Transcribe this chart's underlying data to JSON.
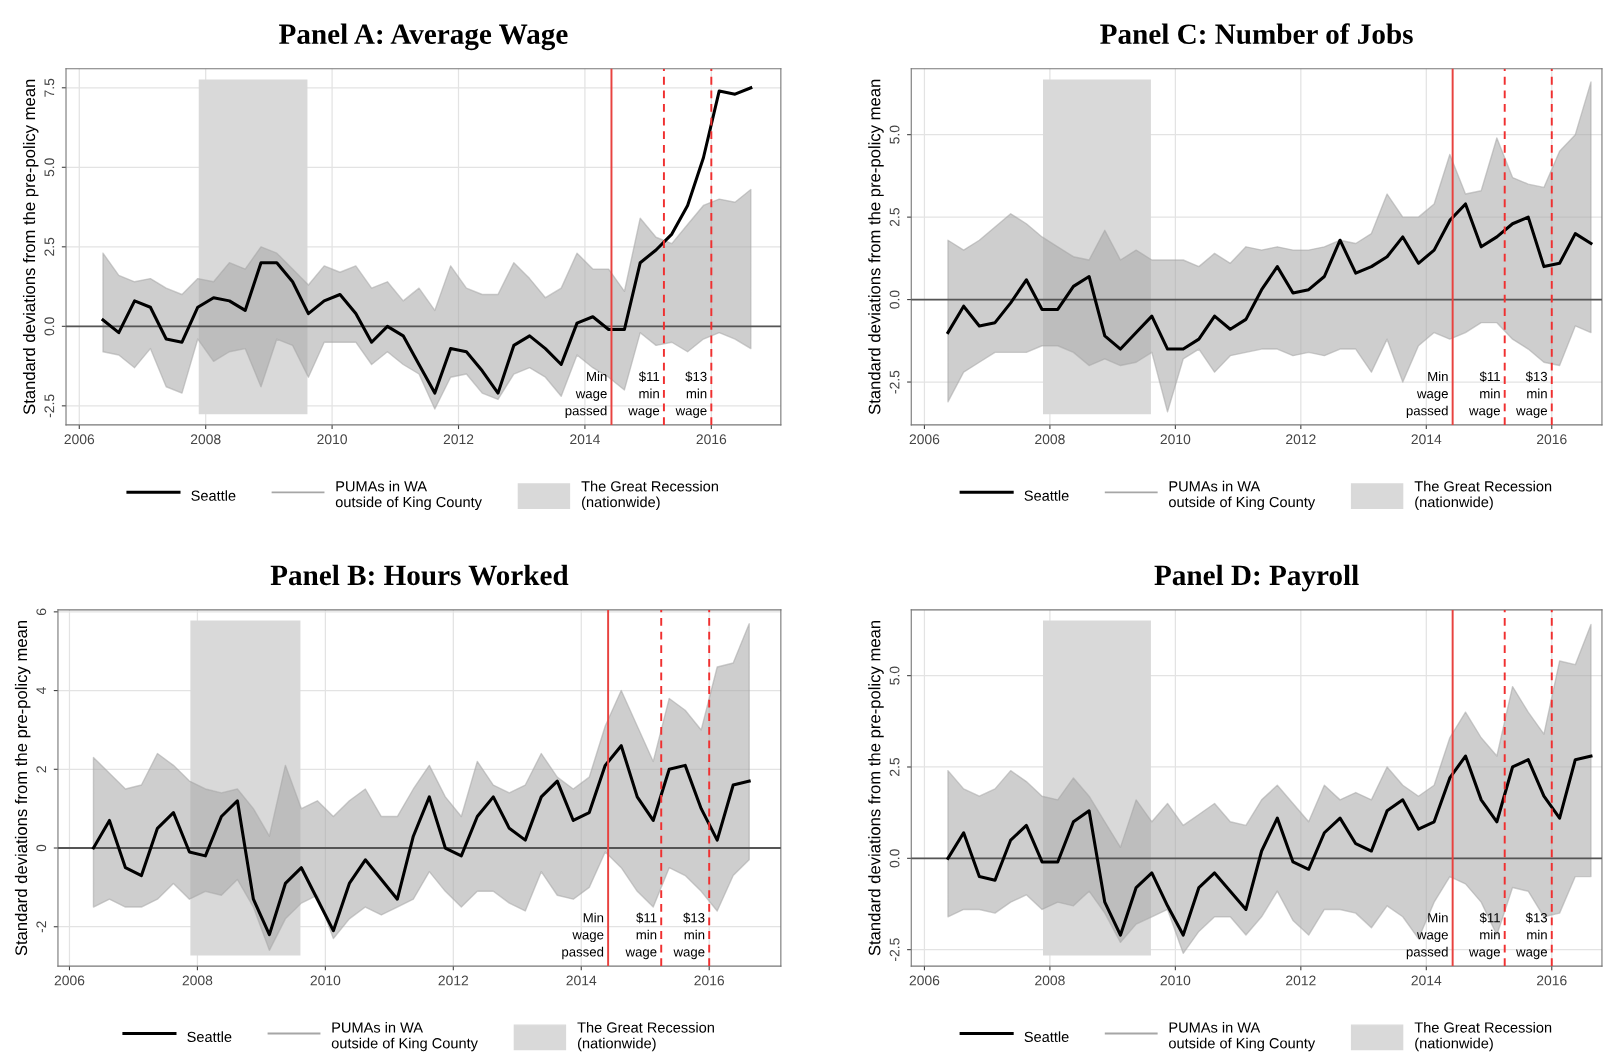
{
  "chart_data": [
    {
      "type": "line",
      "title": "Panel A: Average Wage",
      "ylabel": "Standard deviations from the pre-policy mean",
      "grid": true,
      "legend": "bottom",
      "line_style": "solid",
      "marker": "none",
      "x": [
        2006.375,
        2006.625,
        2006.875,
        2007.125,
        2007.375,
        2007.625,
        2007.875,
        2008.125,
        2008.375,
        2008.625,
        2008.875,
        2009.125,
        2009.375,
        2009.625,
        2009.875,
        2010.125,
        2010.375,
        2010.625,
        2010.875,
        2011.125,
        2011.375,
        2011.625,
        2011.875,
        2012.125,
        2012.375,
        2012.625,
        2012.875,
        2013.125,
        2013.375,
        2013.625,
        2013.875,
        2014.125,
        2014.375,
        2014.625,
        2014.875,
        2015.125,
        2015.375,
        2015.625,
        2015.875,
        2016.125,
        2016.375,
        2016.625
      ],
      "xlim": [
        2005.79,
        2017.1
      ],
      "xticks": [
        2006,
        2008,
        2010,
        2012,
        2014,
        2016
      ],
      "ylim": [
        -3.1,
        8.1
      ],
      "yticks": [
        {
          "value": -2.5,
          "label": "-2.5"
        },
        {
          "value": 0,
          "label": "0.0"
        },
        {
          "value": 2.5,
          "label": "2.5"
        },
        {
          "value": 5,
          "label": "5.0"
        },
        {
          "value": 7.5,
          "label": "7.5"
        }
      ],
      "series": [
        {
          "name": "PUMAs in WA\noutside of King County",
          "color": "#a6a6a6",
          "values": [
            null,
            null,
            null,
            null,
            null,
            null,
            null,
            null,
            null,
            null,
            null,
            null,
            null,
            null,
            null,
            null,
            null,
            null,
            null,
            null,
            null,
            null,
            null,
            null,
            null,
            null,
            null,
            null,
            null,
            null,
            null,
            null,
            null,
            null,
            null,
            null,
            null,
            null,
            null,
            null,
            null,
            null
          ],
          "upper": [
            2.3,
            1.6,
            1.4,
            1.5,
            1.2,
            1.0,
            1.5,
            1.4,
            2.0,
            1.8,
            2.5,
            2.3,
            1.8,
            1.3,
            1.9,
            1.7,
            1.9,
            1.2,
            1.4,
            0.8,
            1.2,
            0.5,
            1.9,
            1.2,
            1.0,
            1.0,
            2.0,
            1.5,
            0.9,
            1.2,
            2.3,
            1.8,
            1.8,
            1.1,
            3.4,
            2.8,
            2.6,
            3.2,
            3.8,
            4.0,
            3.9,
            4.3
          ],
          "lower": [
            -0.8,
            -0.9,
            -1.3,
            -0.7,
            -1.9,
            -2.1,
            -0.4,
            -1.1,
            -0.8,
            -0.7,
            -1.9,
            -0.4,
            -0.6,
            -1.6,
            -0.5,
            -0.5,
            -0.5,
            -1.2,
            -0.8,
            -1.2,
            -1.5,
            -2.6,
            -1.6,
            -1.5,
            -2.1,
            -2.3,
            -1.5,
            -1.3,
            -1.6,
            -2.2,
            -0.9,
            -1.3,
            -1.6,
            -2.0,
            -0.2,
            -0.6,
            -0.5,
            -0.8,
            -0.4,
            -0.2,
            -0.4,
            -0.7
          ]
        },
        {
          "name": "Seattle",
          "color": "#000000",
          "values": [
            0.2,
            -0.2,
            0.8,
            0.6,
            -0.4,
            -0.5,
            0.6,
            0.9,
            0.8,
            0.5,
            2.0,
            2.0,
            1.4,
            0.4,
            0.8,
            1.0,
            0.4,
            -0.5,
            0.0,
            -0.3,
            -1.2,
            -2.1,
            -0.7,
            -0.8,
            -1.4,
            -2.1,
            -0.6,
            -0.3,
            -0.7,
            -1.2,
            0.1,
            0.3,
            -0.1,
            -0.1,
            2.0,
            2.4,
            2.9,
            3.8,
            5.3,
            7.4,
            7.3,
            7.5
          ]
        }
      ],
      "ref_lines": [
        {
          "axis": "y",
          "value": 0,
          "color": "#555555",
          "line_style": "solid"
        },
        {
          "axis": "x",
          "value": 2014.42,
          "label": "Min\nwage\npassed",
          "color": "#e8423f",
          "line_style": "solid"
        },
        {
          "axis": "x",
          "value": 2015.25,
          "label": "$11\nmin\nwage",
          "color": "#f03030",
          "line_style": "dashed"
        },
        {
          "axis": "x",
          "value": 2016.0,
          "label": "$13\nmin\nwage",
          "color": "#f03030",
          "line_style": "dashed"
        }
      ],
      "bands": [
        {
          "axis": "x",
          "from": 2007.89,
          "to": 2009.61,
          "label": "The Great Recession\n(nationwide)",
          "color": "#d9d9d9"
        }
      ]
    },
    {
      "type": "line",
      "title": "Panel C: Number of Jobs",
      "ylabel": "Standard deviations from the pre-policy mean",
      "grid": true,
      "legend": "bottom",
      "line_style": "solid",
      "marker": "none",
      "x": [
        2006.375,
        2006.625,
        2006.875,
        2007.125,
        2007.375,
        2007.625,
        2007.875,
        2008.125,
        2008.375,
        2008.625,
        2008.875,
        2009.125,
        2009.375,
        2009.625,
        2009.875,
        2010.125,
        2010.375,
        2010.625,
        2010.875,
        2011.125,
        2011.375,
        2011.625,
        2011.875,
        2012.125,
        2012.375,
        2012.625,
        2012.875,
        2013.125,
        2013.375,
        2013.625,
        2013.875,
        2014.125,
        2014.375,
        2014.625,
        2014.875,
        2015.125,
        2015.375,
        2015.625,
        2015.875,
        2016.125,
        2016.375,
        2016.625
      ],
      "xlim": [
        2005.79,
        2016.8
      ],
      "xticks": [
        2006,
        2008,
        2010,
        2012,
        2014,
        2016
      ],
      "ylim": [
        -3.8,
        7.0
      ],
      "yticks": [
        {
          "value": -2.5,
          "label": "-2.5"
        },
        {
          "value": 0,
          "label": "0.0"
        },
        {
          "value": 2.5,
          "label": "2.5"
        },
        {
          "value": 5,
          "label": "5.0"
        }
      ],
      "series": [
        {
          "name": "PUMAs in WA\noutside of King County",
          "color": "#a6a6a6",
          "values": [
            null,
            null,
            null,
            null,
            null,
            null,
            null,
            null,
            null,
            null,
            null,
            null,
            null,
            null,
            null,
            null,
            null,
            null,
            null,
            null,
            null,
            null,
            null,
            null,
            null,
            null,
            null,
            null,
            null,
            null,
            null,
            null,
            null,
            null,
            null,
            null,
            null,
            null,
            null,
            null,
            null,
            null
          ],
          "upper": [
            1.8,
            1.5,
            1.8,
            2.2,
            2.6,
            2.3,
            1.9,
            1.6,
            1.3,
            1.2,
            2.1,
            1.2,
            1.5,
            1.2,
            1.2,
            1.2,
            1.0,
            1.4,
            1.1,
            1.6,
            1.5,
            1.6,
            1.5,
            1.5,
            1.6,
            1.8,
            1.7,
            2.0,
            3.2,
            2.5,
            2.5,
            2.9,
            4.4,
            3.2,
            3.3,
            4.9,
            3.7,
            3.5,
            3.4,
            4.5,
            5.0,
            6.6
          ],
          "lower": [
            -3.1,
            -2.2,
            -1.9,
            -1.6,
            -1.6,
            -1.6,
            -1.4,
            -1.4,
            -1.6,
            -2.0,
            -1.8,
            -2.0,
            -1.9,
            -1.6,
            -3.4,
            -1.8,
            -1.5,
            -2.2,
            -1.7,
            -1.6,
            -1.5,
            -1.5,
            -1.7,
            -1.6,
            -1.7,
            -1.5,
            -1.5,
            -2.2,
            -1.2,
            -2.5,
            -1.4,
            -1.0,
            -1.2,
            -1.0,
            -0.7,
            -0.7,
            -1.2,
            -1.5,
            -1.9,
            -2.0,
            -0.8,
            -1.0
          ]
        },
        {
          "name": "Seattle",
          "color": "#000000",
          "values": [
            -1.0,
            -0.2,
            -0.8,
            -0.7,
            -0.1,
            0.6,
            -0.3,
            -0.3,
            0.4,
            0.7,
            -1.1,
            -1.5,
            -1.0,
            -0.5,
            -1.5,
            -1.5,
            -1.2,
            -0.5,
            -0.9,
            -0.6,
            0.3,
            1.0,
            0.2,
            0.3,
            0.7,
            1.8,
            0.8,
            1.0,
            1.3,
            1.9,
            1.1,
            1.5,
            2.4,
            2.9,
            1.6,
            1.9,
            2.3,
            2.5,
            1.0,
            1.1,
            2.0,
            1.7
          ]
        }
      ],
      "ref_lines": [
        {
          "axis": "y",
          "value": 0,
          "color": "#555555",
          "line_style": "solid"
        },
        {
          "axis": "x",
          "value": 2014.42,
          "label": "Min\nwage\npassed",
          "color": "#e8423f",
          "line_style": "solid"
        },
        {
          "axis": "x",
          "value": 2015.25,
          "label": "$11\nmin\nwage",
          "color": "#f03030",
          "line_style": "dashed"
        },
        {
          "axis": "x",
          "value": 2016.0,
          "label": "$13\nmin\nwage",
          "color": "#f03030",
          "line_style": "dashed"
        }
      ],
      "bands": [
        {
          "axis": "x",
          "from": 2007.89,
          "to": 2009.61,
          "label": "The Great Recession\n(nationwide)",
          "color": "#d9d9d9"
        }
      ]
    },
    {
      "type": "line",
      "title": "Panel B: Hours Worked",
      "ylabel": "Standard deviations from the pre-policy mean",
      "grid": true,
      "legend": "bottom",
      "line_style": "solid",
      "marker": "none",
      "x": [
        2006.375,
        2006.625,
        2006.875,
        2007.125,
        2007.375,
        2007.625,
        2007.875,
        2008.125,
        2008.375,
        2008.625,
        2008.875,
        2009.125,
        2009.375,
        2009.625,
        2009.875,
        2010.125,
        2010.375,
        2010.625,
        2010.875,
        2011.125,
        2011.375,
        2011.625,
        2011.875,
        2012.125,
        2012.375,
        2012.625,
        2012.875,
        2013.125,
        2013.375,
        2013.625,
        2013.875,
        2014.125,
        2014.375,
        2014.625,
        2014.875,
        2015.125,
        2015.375,
        2015.625,
        2015.875,
        2016.125,
        2016.375,
        2016.625
      ],
      "xlim": [
        2005.82,
        2017.12
      ],
      "xticks": [
        2006,
        2008,
        2010,
        2012,
        2014,
        2016
      ],
      "ylim": [
        -3.0,
        6.05
      ],
      "yticks": [
        -2,
        0,
        2,
        4,
        6
      ],
      "series": [
        {
          "name": "PUMAs in WA\noutside of King County",
          "color": "#a6a6a6",
          "values": [
            null,
            null,
            null,
            null,
            null,
            null,
            null,
            null,
            null,
            null,
            null,
            null,
            null,
            null,
            null,
            null,
            null,
            null,
            null,
            null,
            null,
            null,
            null,
            null,
            null,
            null,
            null,
            null,
            null,
            null,
            null,
            null,
            null,
            null,
            null,
            null,
            null,
            null,
            null,
            null,
            null,
            null
          ],
          "upper": [
            2.3,
            1.9,
            1.5,
            1.6,
            2.4,
            2.1,
            1.7,
            1.5,
            1.4,
            1.5,
            1.0,
            0.3,
            2.1,
            1.0,
            1.2,
            0.8,
            1.2,
            1.5,
            0.8,
            0.8,
            1.5,
            2.1,
            1.3,
            0.8,
            2.2,
            1.6,
            1.4,
            1.6,
            2.4,
            1.8,
            1.5,
            1.8,
            3.1,
            4.0,
            3.1,
            2.2,
            3.8,
            3.5,
            3.0,
            4.6,
            4.7,
            5.7
          ],
          "lower": [
            -1.5,
            -1.3,
            -1.5,
            -1.5,
            -1.3,
            -0.9,
            -1.3,
            -1.1,
            -1.2,
            -0.8,
            -1.5,
            -2.6,
            -1.8,
            -1.4,
            -1.2,
            -2.3,
            -1.8,
            -1.5,
            -1.7,
            -1.5,
            -1.3,
            -0.6,
            -1.1,
            -1.5,
            -1.1,
            -1.1,
            -1.4,
            -1.6,
            -0.6,
            -1.2,
            -1.3,
            -1.0,
            -0.1,
            -0.5,
            -1.1,
            -1.5,
            -0.5,
            -0.7,
            -1.1,
            -1.6,
            -0.7,
            -0.3
          ]
        },
        {
          "name": "Seattle",
          "color": "#000000",
          "values": [
            0.0,
            0.7,
            -0.5,
            -0.7,
            0.5,
            0.9,
            -0.1,
            -0.2,
            0.8,
            1.2,
            -1.3,
            -2.2,
            -0.9,
            -0.5,
            -1.3,
            -2.1,
            -0.9,
            -0.3,
            -0.8,
            -1.3,
            0.3,
            1.3,
            0.0,
            -0.2,
            0.8,
            1.3,
            0.5,
            0.2,
            1.3,
            1.7,
            0.7,
            0.9,
            2.1,
            2.6,
            1.3,
            0.7,
            2.0,
            2.1,
            1.0,
            0.2,
            1.6,
            1.7
          ]
        }
      ],
      "ref_lines": [
        {
          "axis": "y",
          "value": 0,
          "color": "#555555",
          "line_style": "solid"
        },
        {
          "axis": "x",
          "value": 2014.42,
          "label": "Min\nwage\npassed",
          "color": "#e8423f",
          "line_style": "solid"
        },
        {
          "axis": "x",
          "value": 2015.25,
          "label": "$11\nmin\nwage",
          "color": "#f03030",
          "line_style": "dashed"
        },
        {
          "axis": "x",
          "value": 2016.0,
          "label": "$13\nmin\nwage",
          "color": "#f03030",
          "line_style": "dashed"
        }
      ],
      "bands": [
        {
          "axis": "x",
          "from": 2007.89,
          "to": 2009.61,
          "label": "The Great Recession\n(nationwide)",
          "color": "#d9d9d9"
        }
      ]
    },
    {
      "type": "line",
      "title": "Panel D: Payroll",
      "ylabel": "Standard deviations from the pre-policy mean",
      "grid": true,
      "legend": "bottom",
      "line_style": "solid",
      "marker": "none",
      "x": [
        2006.375,
        2006.625,
        2006.875,
        2007.125,
        2007.375,
        2007.625,
        2007.875,
        2008.125,
        2008.375,
        2008.625,
        2008.875,
        2009.125,
        2009.375,
        2009.625,
        2009.875,
        2010.125,
        2010.375,
        2010.625,
        2010.875,
        2011.125,
        2011.375,
        2011.625,
        2011.875,
        2012.125,
        2012.375,
        2012.625,
        2012.875,
        2013.125,
        2013.375,
        2013.625,
        2013.875,
        2014.125,
        2014.375,
        2014.625,
        2014.875,
        2015.125,
        2015.375,
        2015.625,
        2015.875,
        2016.125,
        2016.375,
        2016.625
      ],
      "xlim": [
        2005.79,
        2016.8
      ],
      "xticks": [
        2006,
        2008,
        2010,
        2012,
        2014,
        2016
      ],
      "ylim": [
        -2.95,
        6.8
      ],
      "yticks": [
        {
          "value": -2.5,
          "label": "-2.5"
        },
        {
          "value": 0,
          "label": "0.0"
        },
        {
          "value": 2.5,
          "label": "2.5"
        },
        {
          "value": 5,
          "label": "5.0"
        }
      ],
      "series": [
        {
          "name": "PUMAs in WA\noutside of King County",
          "color": "#a6a6a6",
          "values": [
            null,
            null,
            null,
            null,
            null,
            null,
            null,
            null,
            null,
            null,
            null,
            null,
            null,
            null,
            null,
            null,
            null,
            null,
            null,
            null,
            null,
            null,
            null,
            null,
            null,
            null,
            null,
            null,
            null,
            null,
            null,
            null,
            null,
            null,
            null,
            null,
            null,
            null,
            null,
            null,
            null,
            null
          ],
          "upper": [
            2.4,
            1.9,
            1.7,
            1.9,
            2.4,
            2.1,
            1.7,
            1.6,
            2.2,
            1.7,
            1.0,
            0.3,
            1.6,
            1.0,
            1.5,
            0.9,
            1.2,
            1.5,
            1.0,
            0.9,
            1.6,
            2.0,
            1.5,
            1.0,
            2.0,
            1.6,
            1.8,
            1.6,
            2.5,
            2.0,
            1.7,
            2.0,
            3.3,
            4.0,
            3.3,
            2.8,
            4.7,
            4.0,
            3.4,
            5.4,
            5.3,
            6.4
          ],
          "lower": [
            -1.6,
            -1.4,
            -1.4,
            -1.5,
            -1.2,
            -1.0,
            -1.4,
            -1.2,
            -1.3,
            -0.9,
            -1.5,
            -2.3,
            -1.8,
            -1.6,
            -1.4,
            -2.6,
            -2.0,
            -1.6,
            -1.6,
            -2.1,
            -1.6,
            -0.9,
            -1.7,
            -2.1,
            -1.4,
            -1.4,
            -1.5,
            -1.9,
            -1.3,
            -1.6,
            -2.2,
            -1.2,
            -0.5,
            -0.7,
            -1.2,
            -2.1,
            -0.8,
            -0.9,
            -1.6,
            -1.5,
            -0.5,
            -0.5
          ]
        },
        {
          "name": "Seattle",
          "color": "#000000",
          "values": [
            0.0,
            0.7,
            -0.5,
            -0.6,
            0.5,
            0.9,
            -0.1,
            -0.1,
            1.0,
            1.3,
            -1.2,
            -2.1,
            -0.8,
            -0.4,
            -1.3,
            -2.1,
            -0.8,
            -0.4,
            -0.9,
            -1.4,
            0.2,
            1.1,
            -0.1,
            -0.3,
            0.7,
            1.1,
            0.4,
            0.2,
            1.3,
            1.6,
            0.8,
            1.0,
            2.2,
            2.8,
            1.6,
            1.0,
            2.5,
            2.7,
            1.7,
            1.1,
            2.7,
            2.8
          ]
        }
      ],
      "ref_lines": [
        {
          "axis": "y",
          "value": 0,
          "color": "#555555",
          "line_style": "solid"
        },
        {
          "axis": "x",
          "value": 2014.42,
          "label": "Min\nwage\npassed",
          "color": "#e8423f",
          "line_style": "solid"
        },
        {
          "axis": "x",
          "value": 2015.25,
          "label": "$11\nmin\nwage",
          "color": "#f03030",
          "line_style": "dashed"
        },
        {
          "axis": "x",
          "value": 2016.0,
          "label": "$13\nmin\nwage",
          "color": "#f03030",
          "line_style": "dashed"
        }
      ],
      "bands": [
        {
          "axis": "x",
          "from": 2007.89,
          "to": 2009.61,
          "label": "The Great Recession\n(nationwide)",
          "color": "#d9d9d9"
        }
      ]
    }
  ]
}
